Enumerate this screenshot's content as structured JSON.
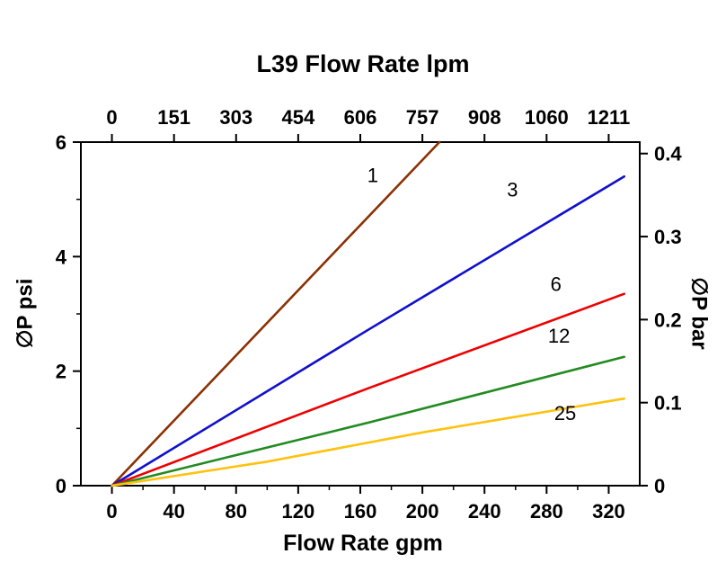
{
  "chart_data": {
    "type": "line",
    "title": "L39 Flow Rate lpm",
    "xlabel": "Flow Rate gpm",
    "ylabel_left": "∅P psi",
    "ylabel_right": "∅P bar",
    "x_axis": {
      "lim": [
        -20,
        340
      ],
      "major_ticks": [
        0,
        40,
        80,
        120,
        160,
        200,
        240,
        280,
        320
      ],
      "minor_ticks": [
        20,
        60,
        100,
        140,
        180,
        220,
        260,
        300
      ]
    },
    "top_axis": {
      "tick_labels": [
        "0",
        "151",
        "303",
        "454",
        "606",
        "757",
        "908",
        "1060",
        "1211"
      ],
      "tick_positions_gpm": [
        0,
        40,
        80,
        120,
        160,
        200,
        240,
        280,
        320
      ]
    },
    "y_left": {
      "lim": [
        0,
        6
      ],
      "major_ticks": [
        0,
        2,
        4,
        6
      ],
      "minor_ticks": [
        1,
        3,
        5
      ]
    },
    "y_right": {
      "tick_labels": [
        "0",
        "0.1",
        "0.2",
        "0.3",
        "0.4"
      ],
      "tick_psi_positions": [
        0,
        1.45,
        2.9,
        4.35,
        5.8
      ]
    },
    "grid": false,
    "legend_position": "inline-labels",
    "series": [
      {
        "name": "1",
        "color": "#8B3103",
        "points": [
          [
            0,
            0
          ],
          [
            211,
            6
          ]
        ],
        "label_pos": [
          168,
          5.3
        ]
      },
      {
        "name": "3",
        "color": "#1010CC",
        "points": [
          [
            0,
            0
          ],
          [
            165,
            2.72
          ],
          [
            330,
            5.4
          ]
        ],
        "label_pos": [
          258,
          5.05
        ]
      },
      {
        "name": "6",
        "color": "#EE0000",
        "points": [
          [
            0,
            0
          ],
          [
            165,
            1.7
          ],
          [
            330,
            3.35
          ]
        ],
        "label_pos": [
          286,
          3.4
        ]
      },
      {
        "name": "12",
        "color": "#228B22",
        "points": [
          [
            0,
            0
          ],
          [
            165,
            1.1
          ],
          [
            330,
            2.25
          ]
        ],
        "label_pos": [
          288,
          2.5
        ]
      },
      {
        "name": "25",
        "color": "#FFC20E",
        "points": [
          [
            0,
            0
          ],
          [
            100,
            0.42
          ],
          [
            200,
            0.93
          ],
          [
            330,
            1.52
          ]
        ],
        "label_pos": [
          292,
          1.15
        ]
      }
    ]
  }
}
